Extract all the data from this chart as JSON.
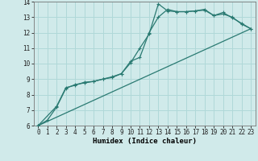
{
  "title": "",
  "xlabel": "Humidex (Indice chaleur)",
  "xlim": [
    -0.5,
    23.5
  ],
  "ylim": [
    6,
    14
  ],
  "xticks": [
    0,
    1,
    2,
    3,
    4,
    5,
    6,
    7,
    8,
    9,
    10,
    11,
    12,
    13,
    14,
    15,
    16,
    17,
    18,
    19,
    20,
    21,
    22,
    23
  ],
  "yticks": [
    6,
    7,
    8,
    9,
    10,
    11,
    12,
    13,
    14
  ],
  "bg_color": "#d0eaea",
  "grid_color": "#b0d8d8",
  "line_color": "#2a7a72",
  "line1_x": [
    0,
    1,
    2,
    3,
    4,
    5,
    6,
    7,
    8,
    9,
    10,
    11,
    12,
    13,
    14,
    15,
    16,
    17,
    18,
    19,
    20,
    21,
    22,
    23
  ],
  "line1_y": [
    6.0,
    6.35,
    7.2,
    8.4,
    8.65,
    8.75,
    8.85,
    9.0,
    9.1,
    9.35,
    10.05,
    11.0,
    11.9,
    13.85,
    13.4,
    13.35,
    13.35,
    13.4,
    13.5,
    13.1,
    13.2,
    13.0,
    12.55,
    12.25
  ],
  "line2_x": [
    0,
    2,
    3,
    4,
    5,
    6,
    7,
    8,
    9,
    10,
    11,
    12,
    13,
    14,
    15,
    16,
    17,
    18,
    19,
    20,
    21,
    22,
    23
  ],
  "line2_y": [
    6.0,
    7.25,
    8.45,
    8.6,
    8.8,
    8.85,
    9.0,
    9.15,
    9.35,
    10.15,
    10.4,
    12.0,
    13.0,
    13.5,
    13.35,
    13.35,
    13.4,
    13.45,
    13.1,
    13.3,
    12.95,
    12.6,
    12.25
  ],
  "line3_x": [
    0,
    23
  ],
  "line3_y": [
    6.0,
    12.25
  ],
  "marker": "+"
}
